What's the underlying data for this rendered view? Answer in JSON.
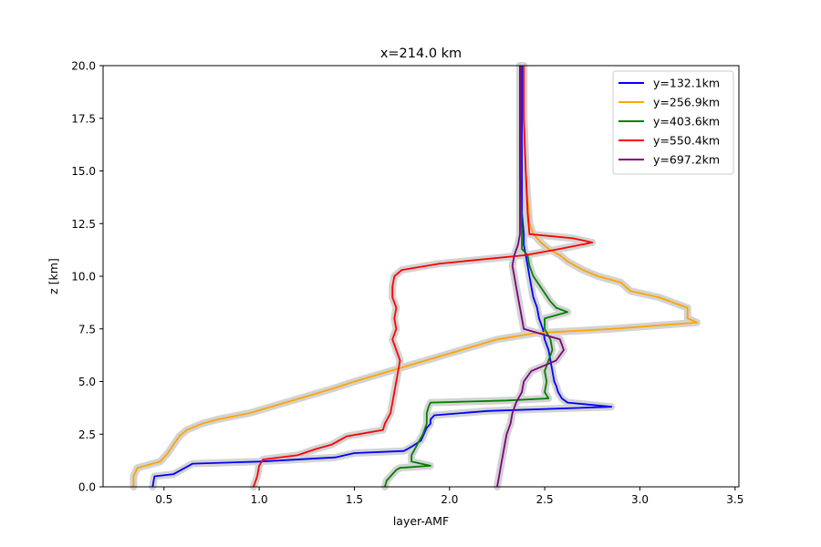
{
  "chart_data": {
    "type": "line",
    "title": "x=214.0 km",
    "xlabel": "layer-AMF",
    "ylabel": "z [km]",
    "xlim": [
      0.18,
      3.52
    ],
    "ylim": [
      0,
      20
    ],
    "xticks": [
      0.5,
      1.0,
      1.5,
      2.0,
      2.5,
      3.0,
      3.5
    ],
    "xtick_labels": [
      "0.5",
      "1.0",
      "1.5",
      "2.0",
      "2.5",
      "3.0",
      "3.5"
    ],
    "yticks": [
      0,
      2.5,
      5,
      7.5,
      10,
      12.5,
      15,
      17.5,
      20
    ],
    "ytick_labels": [
      "0.0",
      "2.5",
      "5.0",
      "7.5",
      "10.0",
      "12.5",
      "15.0",
      "17.5",
      "20.0"
    ],
    "grid": false,
    "legend_position": "top-right",
    "uncertainty_band_color": "#d3d3d3",
    "series": [
      {
        "name": "y=132.1km",
        "color": "#0000ff",
        "z": [
          0.0,
          0.5,
          0.6,
          1.0,
          1.1,
          1.2,
          1.4,
          1.6,
          1.7,
          1.9,
          2.2,
          2.4,
          2.6,
          2.8,
          3.0,
          3.2,
          3.4,
          3.6,
          3.8,
          4.0,
          4.2,
          4.5,
          4.8,
          5.0,
          5.5,
          6.0,
          6.5,
          7.0,
          7.5,
          8.0,
          8.5,
          9.0,
          9.5,
          10.0,
          10.5,
          11.0,
          11.5,
          12.0,
          13.0,
          15.0,
          17.0,
          20.0
        ],
        "x": [
          0.44,
          0.45,
          0.55,
          0.63,
          0.65,
          1.0,
          1.4,
          1.5,
          1.76,
          1.8,
          1.85,
          1.86,
          1.87,
          1.88,
          1.9,
          1.9,
          1.92,
          2.2,
          2.85,
          2.62,
          2.59,
          2.57,
          2.56,
          2.55,
          2.54,
          2.53,
          2.52,
          2.5,
          2.49,
          2.47,
          2.46,
          2.44,
          2.43,
          2.42,
          2.41,
          2.4,
          2.39,
          2.39,
          2.38,
          2.38,
          2.38,
          2.38
        ]
      },
      {
        "name": "y=256.9km",
        "color": "#ffa500",
        "z": [
          0.0,
          0.5,
          0.9,
          1.2,
          1.6,
          2.0,
          2.4,
          2.7,
          3.0,
          3.2,
          3.5,
          3.9,
          4.3,
          4.7,
          5.0,
          5.4,
          5.8,
          6.2,
          6.6,
          7.0,
          7.3,
          7.5,
          7.8,
          8.0,
          8.5,
          9.0,
          9.3,
          9.7,
          10.0,
          10.3,
          10.7,
          11.0,
          11.3,
          11.6,
          12.0,
          12.5,
          15.0,
          17.5,
          20.0
        ],
        "x": [
          0.34,
          0.34,
          0.36,
          0.48,
          0.52,
          0.55,
          0.58,
          0.62,
          0.7,
          0.78,
          0.95,
          1.1,
          1.25,
          1.4,
          1.5,
          1.65,
          1.8,
          1.95,
          2.1,
          2.25,
          2.45,
          2.85,
          3.3,
          3.25,
          3.25,
          3.1,
          2.95,
          2.9,
          2.78,
          2.7,
          2.62,
          2.58,
          2.52,
          2.48,
          2.44,
          2.42,
          2.4,
          2.39,
          2.39
        ]
      },
      {
        "name": "y=403.6km",
        "color": "#008000",
        "z": [
          0.0,
          0.3,
          0.6,
          0.8,
          0.9,
          1.0,
          1.2,
          1.5,
          2.0,
          2.5,
          3.0,
          3.5,
          3.8,
          4.0,
          4.1,
          4.2,
          4.5,
          5.0,
          5.5,
          6.0,
          6.5,
          7.0,
          7.5,
          8.0,
          8.3,
          8.5,
          8.8,
          9.2,
          9.6,
          10.0,
          10.5,
          11.0,
          11.3,
          12.0,
          15.0,
          20.0
        ],
        "x": [
          1.66,
          1.67,
          1.7,
          1.72,
          1.74,
          1.9,
          1.8,
          1.8,
          1.83,
          1.86,
          1.88,
          1.88,
          1.89,
          1.9,
          2.3,
          2.52,
          2.5,
          2.51,
          2.5,
          2.52,
          2.54,
          2.53,
          2.5,
          2.5,
          2.62,
          2.56,
          2.53,
          2.5,
          2.47,
          2.44,
          2.42,
          2.41,
          2.38,
          2.38,
          2.37,
          2.37
        ]
      },
      {
        "name": "y=550.4km",
        "color": "#ff0000",
        "z": [
          0.0,
          0.5,
          1.0,
          1.3,
          1.5,
          1.8,
          2.0,
          2.4,
          2.7,
          3.0,
          3.5,
          4.0,
          4.5,
          5.0,
          6.0,
          6.5,
          7.0,
          7.5,
          8.0,
          8.5,
          9.0,
          9.5,
          10.0,
          10.3,
          10.6,
          11.0,
          11.3,
          11.6,
          11.8,
          12.0,
          13.0,
          15.0,
          17.5,
          20.0
        ],
        "x": [
          0.97,
          0.99,
          1.0,
          1.02,
          1.2,
          1.3,
          1.38,
          1.46,
          1.65,
          1.66,
          1.69,
          1.7,
          1.71,
          1.72,
          1.74,
          1.72,
          1.7,
          1.72,
          1.71,
          1.72,
          1.7,
          1.7,
          1.71,
          1.75,
          1.95,
          2.4,
          2.58,
          2.75,
          2.65,
          2.42,
          2.41,
          2.4,
          2.39,
          2.39
        ]
      },
      {
        "name": "y=697.2km",
        "color": "#800080",
        "z": [
          0.0,
          0.5,
          1.0,
          1.5,
          2.0,
          2.5,
          3.0,
          3.5,
          4.0,
          4.5,
          5.0,
          5.5,
          6.0,
          6.5,
          7.0,
          7.5,
          8.0,
          8.5,
          9.0,
          9.5,
          10.0,
          10.5,
          11.0,
          11.5,
          12.0,
          13.0,
          15.0,
          17.5,
          20.0
        ],
        "x": [
          2.25,
          2.26,
          2.27,
          2.28,
          2.29,
          2.3,
          2.32,
          2.33,
          2.35,
          2.38,
          2.39,
          2.43,
          2.56,
          2.6,
          2.58,
          2.39,
          2.38,
          2.37,
          2.36,
          2.35,
          2.34,
          2.33,
          2.34,
          2.36,
          2.37,
          2.37,
          2.37,
          2.37,
          2.37
        ]
      }
    ]
  }
}
